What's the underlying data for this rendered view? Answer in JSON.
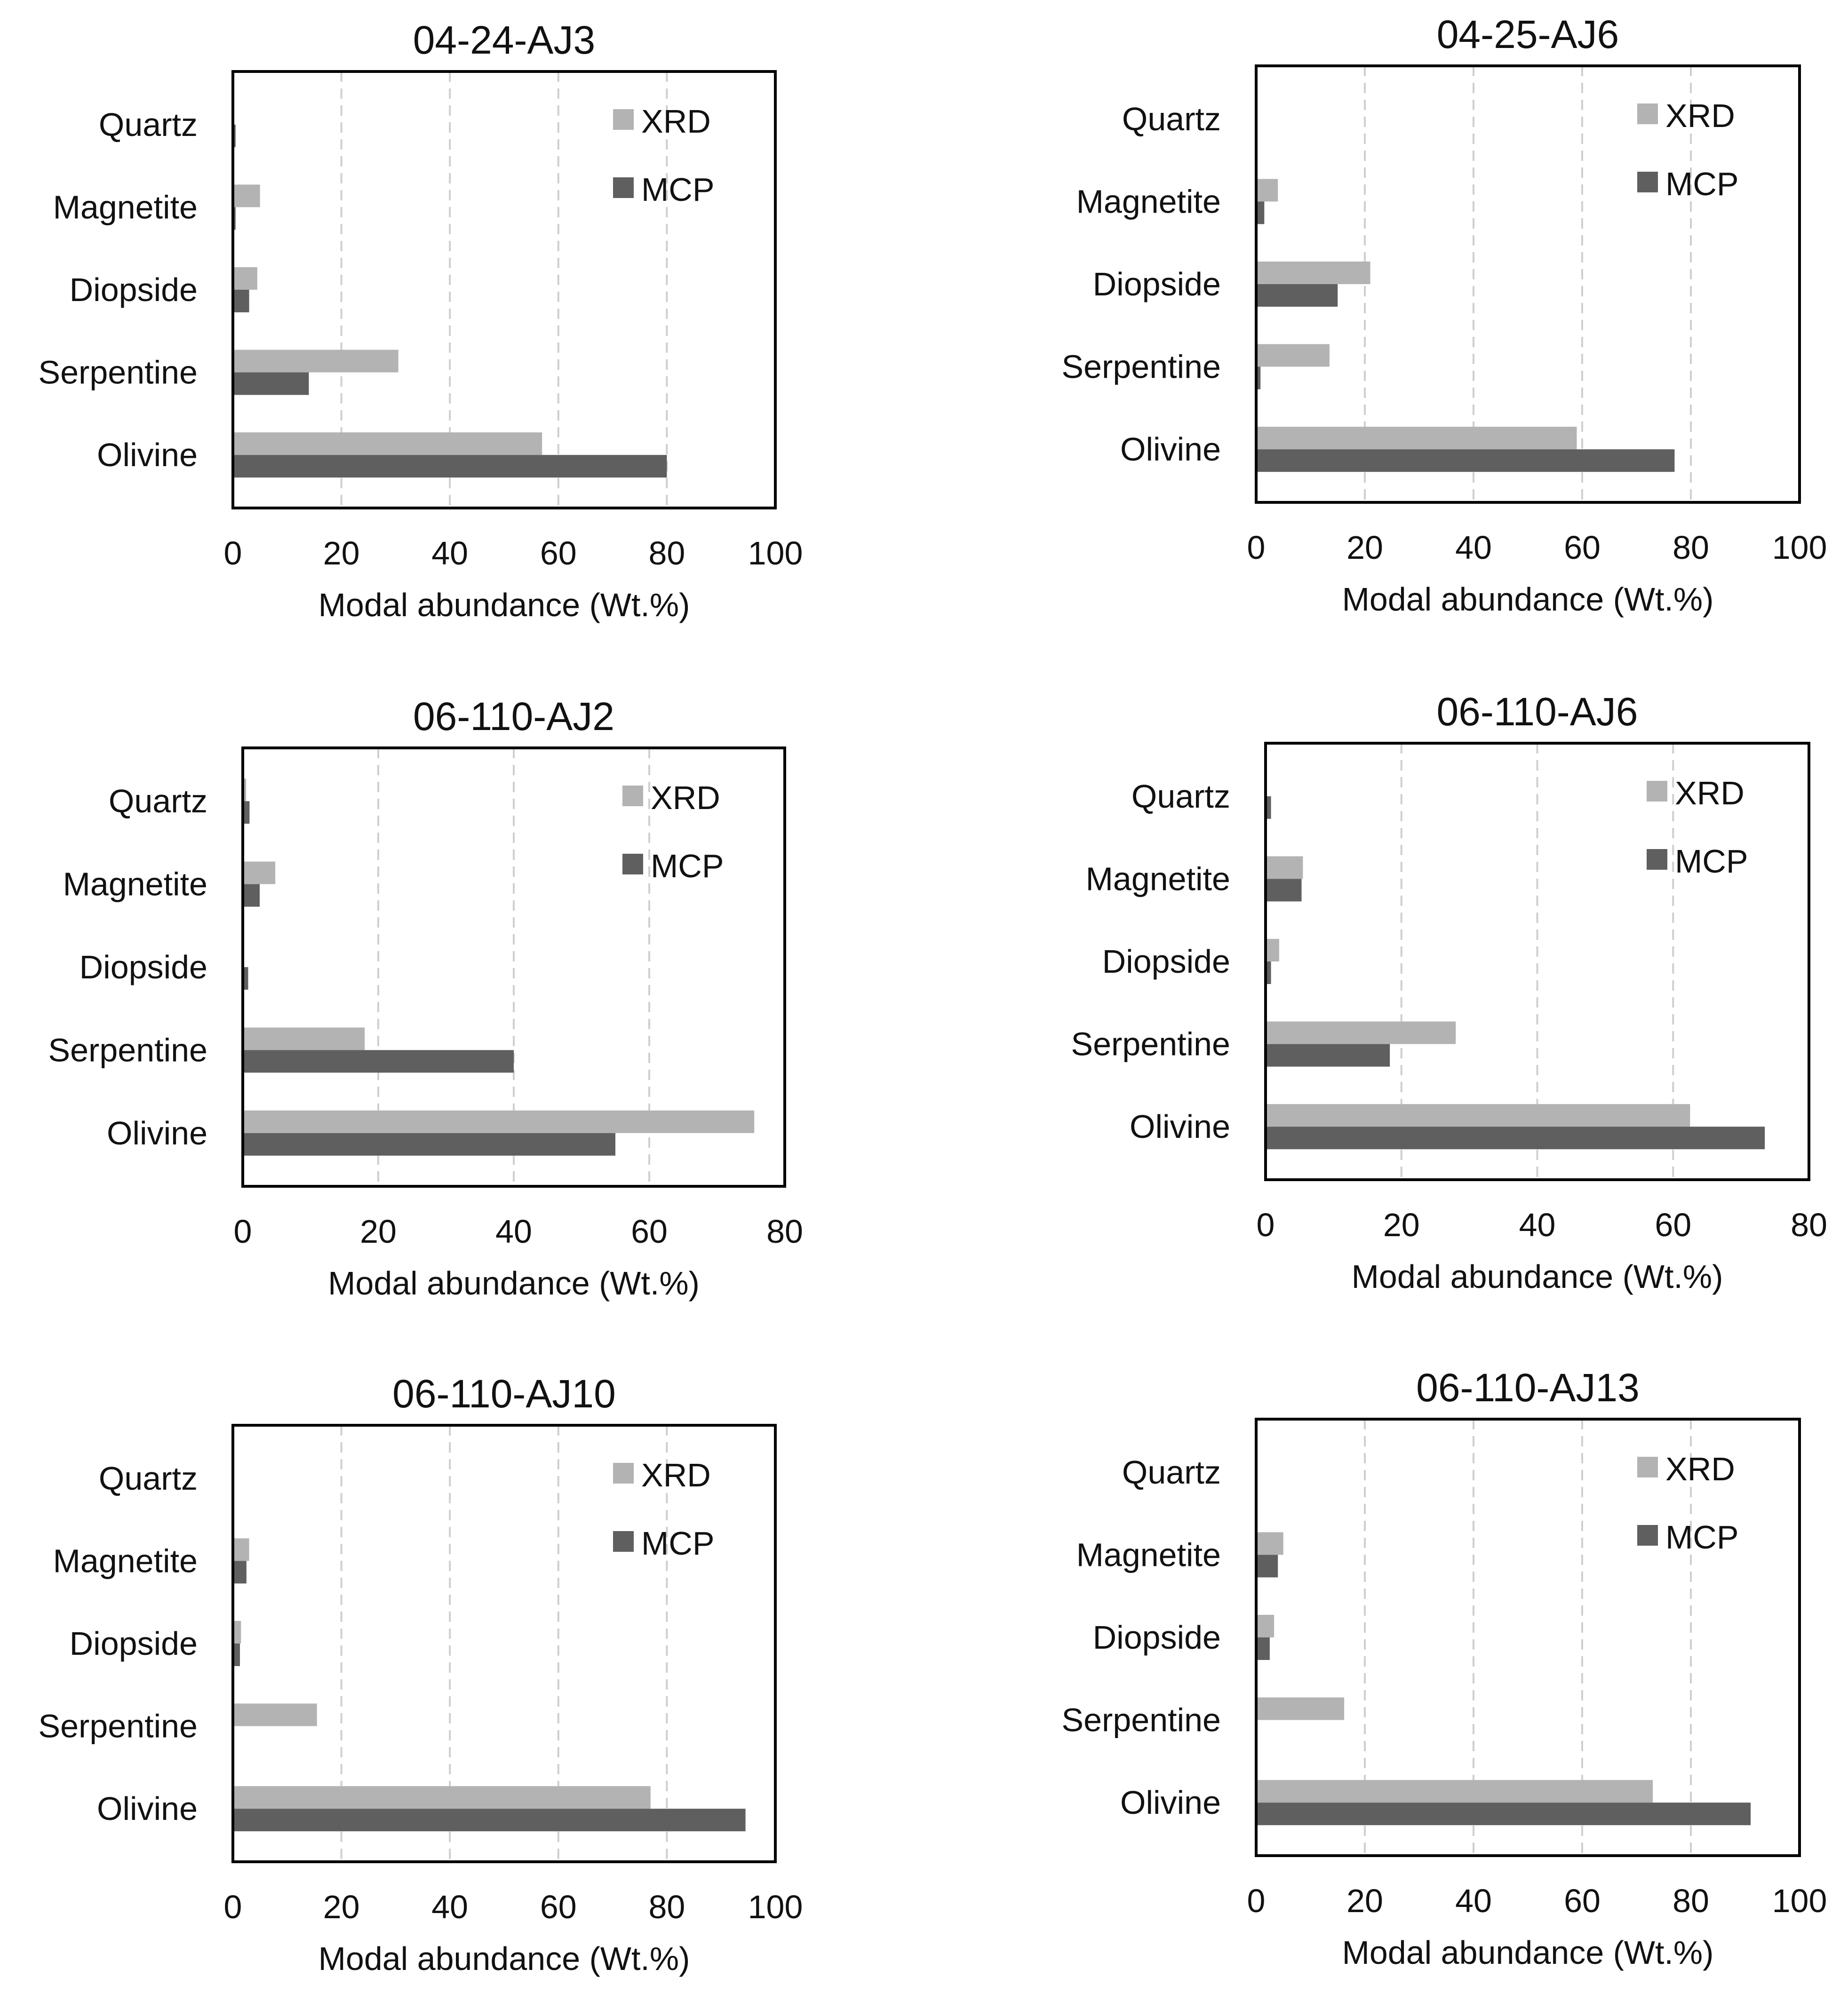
{
  "chart_data": [
    {
      "type": "bar",
      "orientation": "horizontal",
      "title": "04-24-AJ3",
      "categories": [
        "Quartz",
        "Magnetite",
        "Diopside",
        "Serpentine",
        "Olivine"
      ],
      "series": [
        {
          "name": "XRD",
          "values": [
            0,
            5,
            4.5,
            30.5,
            57
          ]
        },
        {
          "name": "MCP",
          "values": [
            0.5,
            0.5,
            3,
            14,
            80
          ]
        }
      ],
      "xlabel": "Modal abundance (Wt.%)",
      "ylabel": "",
      "xlim": [
        0,
        100
      ],
      "xticks": [
        "0",
        "20",
        "40",
        "60",
        "80",
        "100"
      ],
      "grid": "dashed vertical",
      "legend": "top-right"
    },
    {
      "type": "bar",
      "orientation": "horizontal",
      "title": "04-25-AJ6",
      "categories": [
        "Quartz",
        "Magnetite",
        "Diopside",
        "Serpentine",
        "Olivine"
      ],
      "series": [
        {
          "name": "XRD",
          "values": [
            0,
            4,
            21,
            13.5,
            59
          ]
        },
        {
          "name": "MCP",
          "values": [
            0,
            1.5,
            15,
            0.8,
            77
          ]
        }
      ],
      "xlabel": "Modal abundance (Wt.%)",
      "ylabel": "",
      "xlim": [
        0,
        100
      ],
      "xticks": [
        "0",
        "20",
        "40",
        "60",
        "80",
        "100"
      ],
      "grid": "dashed vertical",
      "legend": "top-right"
    },
    {
      "type": "bar",
      "orientation": "horizontal",
      "title": "06-110-AJ2",
      "categories": [
        "Quartz",
        "Magnetite",
        "Diopside",
        "Serpentine",
        "Olivine"
      ],
      "series": [
        {
          "name": "XRD",
          "values": [
            0.5,
            4.8,
            0,
            18,
            75.5
          ]
        },
        {
          "name": "MCP",
          "values": [
            1,
            2.5,
            0.8,
            40,
            55
          ]
        }
      ],
      "xlabel": "Modal abundance (Wt.%)",
      "ylabel": "",
      "xlim": [
        0,
        80
      ],
      "xticks": [
        "0",
        "20",
        "40",
        "60",
        "80"
      ],
      "grid": "dashed vertical",
      "legend": "top-right"
    },
    {
      "type": "bar",
      "orientation": "horizontal",
      "title": "06-110-AJ6",
      "categories": [
        "Quartz",
        "Magnetite",
        "Diopside",
        "Serpentine",
        "Olivine"
      ],
      "series": [
        {
          "name": "XRD",
          "values": [
            0,
            5.5,
            2,
            28,
            62.5
          ]
        },
        {
          "name": "MCP",
          "values": [
            0.8,
            5.3,
            0.8,
            18.3,
            73.5
          ]
        }
      ],
      "xlabel": "Modal abundance (Wt.%)",
      "ylabel": "",
      "xlim": [
        0,
        80
      ],
      "xticks": [
        "0",
        "20",
        "40",
        "60",
        "80"
      ],
      "grid": "dashed vertical",
      "legend": "top-right"
    },
    {
      "type": "bar",
      "orientation": "horizontal",
      "title": "06-110-AJ10",
      "categories": [
        "Quartz",
        "Magnetite",
        "Diopside",
        "Serpentine",
        "Olivine"
      ],
      "series": [
        {
          "name": "XRD",
          "values": [
            0,
            3,
            1.5,
            15.5,
            77
          ]
        },
        {
          "name": "MCP",
          "values": [
            0,
            2.5,
            1.3,
            0,
            94.5
          ]
        }
      ],
      "xlabel": "Modal abundance (Wt.%)",
      "ylabel": "",
      "xlim": [
        0,
        100
      ],
      "xticks": [
        "0",
        "20",
        "40",
        "60",
        "80",
        "100"
      ],
      "grid": "dashed vertical",
      "legend": "top-right"
    },
    {
      "type": "bar",
      "orientation": "horizontal",
      "title": "06-110-AJ13",
      "categories": [
        "Quartz",
        "Magnetite",
        "Diopside",
        "Serpentine",
        "Olivine"
      ],
      "series": [
        {
          "name": "XRD",
          "values": [
            0.2,
            5,
            3.3,
            16.2,
            73
          ]
        },
        {
          "name": "MCP",
          "values": [
            0,
            4,
            2.5,
            0,
            91
          ]
        }
      ],
      "xlabel": "Modal abundance (Wt.%)",
      "ylabel": "",
      "xlim": [
        0,
        100
      ],
      "xticks": [
        "0",
        "20",
        "40",
        "60",
        "80",
        "100"
      ],
      "grid": "dashed vertical",
      "legend": "top-right"
    }
  ],
  "colors": {
    "XRD": "#b3b3b3",
    "MCP": "#5f5f5f",
    "grid": "#cfcfcf",
    "frame": "#000000"
  }
}
